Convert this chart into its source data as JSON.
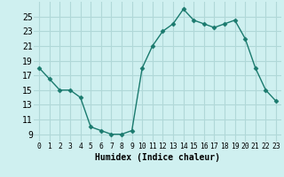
{
  "x": [
    0,
    1,
    2,
    3,
    4,
    5,
    6,
    7,
    8,
    9,
    10,
    11,
    12,
    13,
    14,
    15,
    16,
    17,
    18,
    19,
    20,
    21,
    22,
    23
  ],
  "y": [
    18.0,
    16.5,
    15.0,
    15.0,
    14.0,
    10.0,
    9.5,
    9.0,
    9.0,
    9.5,
    18.0,
    21.0,
    23.0,
    24.0,
    26.0,
    24.5,
    24.0,
    23.5,
    24.0,
    24.5,
    22.0,
    18.0,
    15.0,
    13.5
  ],
  "line_color": "#1a7a6e",
  "marker": "D",
  "marker_size": 2.5,
  "bg_color": "#cff0f0",
  "grid_color": "#b0d8d8",
  "xlabel": "Humidex (Indice chaleur)",
  "xlim": [
    -0.5,
    23.5
  ],
  "ylim": [
    8,
    27
  ],
  "yticks": [
    9,
    11,
    13,
    15,
    17,
    19,
    21,
    23,
    25
  ],
  "xticks": [
    0,
    1,
    2,
    3,
    4,
    5,
    6,
    7,
    8,
    9,
    10,
    11,
    12,
    13,
    14,
    15,
    16,
    17,
    18,
    19,
    20,
    21,
    22,
    23
  ],
  "xlabel_fontsize": 7,
  "ytick_fontsize": 7,
  "xtick_fontsize": 5.8,
  "line_width": 1.0
}
